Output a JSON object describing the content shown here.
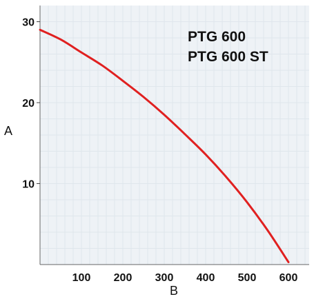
{
  "chart_data": {
    "type": "line",
    "xlabel": "B",
    "ylabel": "A",
    "xlim": [
      0,
      650
    ],
    "ylim": [
      0,
      32
    ],
    "x_ticks": [
      100,
      200,
      300,
      400,
      500,
      600
    ],
    "y_ticks": [
      10,
      20,
      30
    ],
    "grid": true,
    "series_labels": [
      "PTG 600",
      "PTG 600 ST"
    ],
    "series": [
      {
        "color": "#e02020",
        "x": [
          0,
          50,
          100,
          150,
          200,
          250,
          300,
          350,
          400,
          450,
          500,
          550,
          600
        ],
        "y": [
          29,
          27.8,
          26.2,
          24.6,
          22.7,
          20.7,
          18.5,
          16.1,
          13.6,
          10.8,
          7.7,
          4.2,
          0.3
        ]
      }
    ],
    "colors": {
      "grid": "#dfe6ec",
      "background": "#eef2f6",
      "axis": "#666666"
    }
  }
}
